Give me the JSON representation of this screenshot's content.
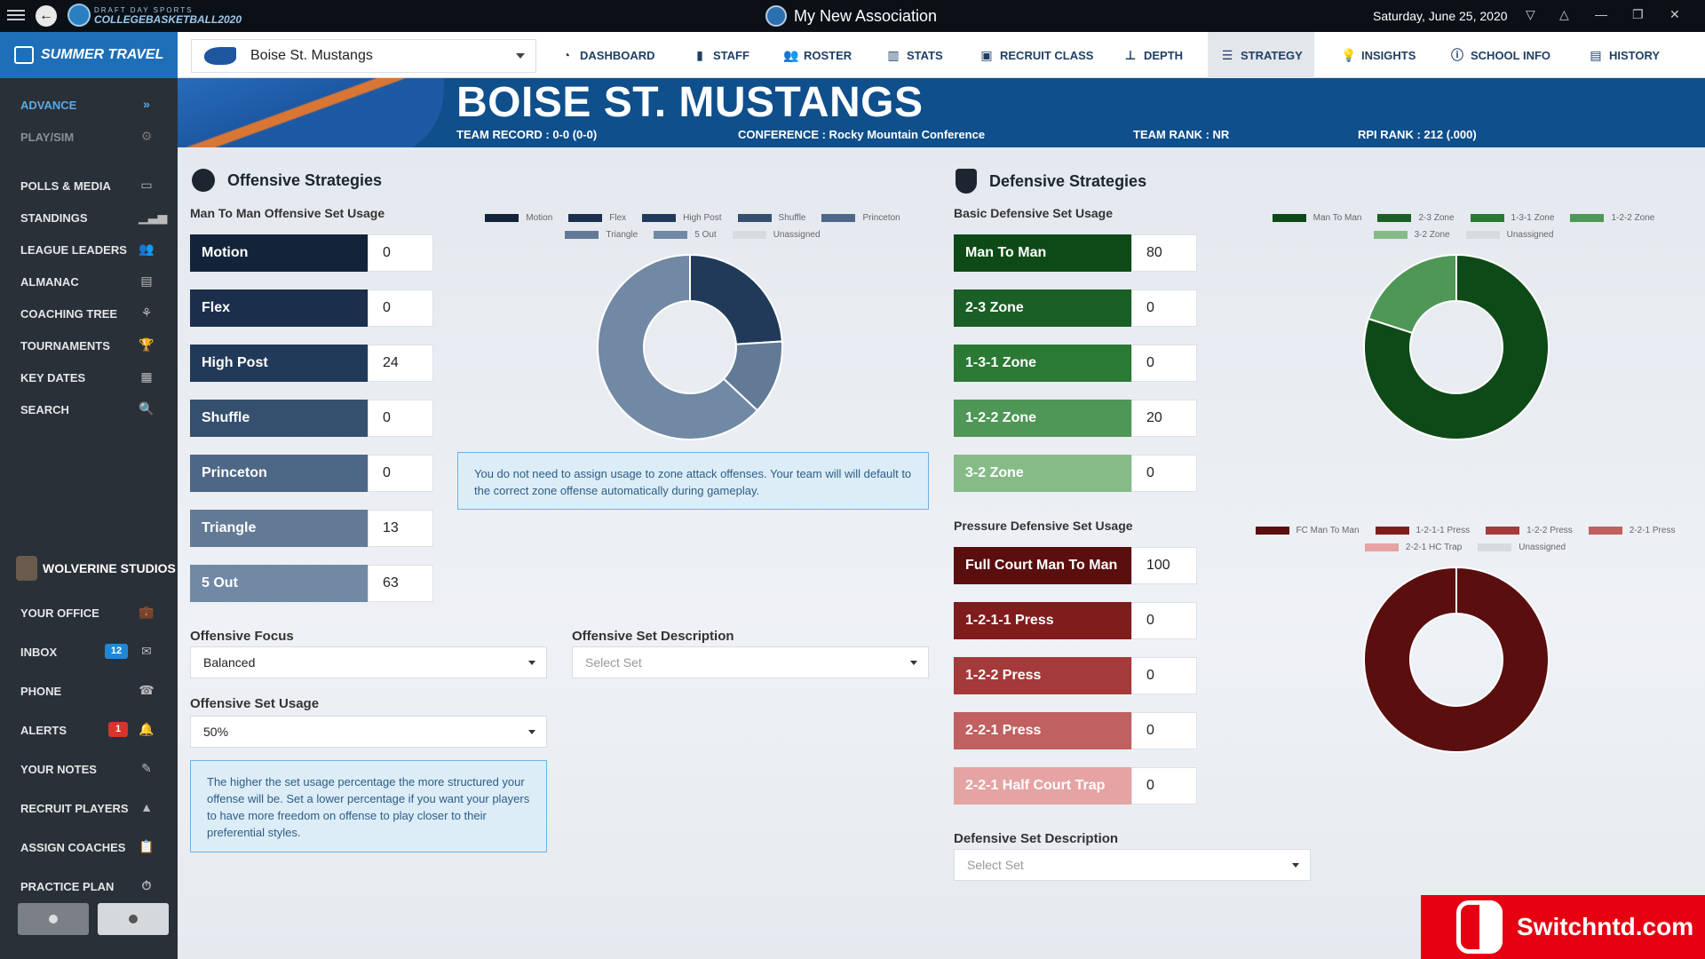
{
  "titlebar": {
    "logo_small": "DRAFT DAY SPORTS",
    "logo_big": "COLLEGEBASKETBALL2020",
    "title": "My New Association",
    "date": "Saturday, June 25, 2020",
    "controls": [
      "▽",
      "△",
      "—",
      "❐",
      "✕"
    ]
  },
  "sidebar": {
    "header": "SUMMER TRAVEL",
    "top_items": [
      {
        "label": "ADVANCE",
        "icon": "double-chevron-right-icon"
      },
      {
        "label": "PLAY/SIM",
        "icon": "gear-icon"
      }
    ],
    "items": [
      {
        "label": "POLLS & MEDIA",
        "icon": "media-icon"
      },
      {
        "label": "STANDINGS",
        "icon": "bar-chart-icon"
      },
      {
        "label": "LEAGUE LEADERS",
        "icon": "users-icon"
      },
      {
        "label": "ALMANAC",
        "icon": "archive-icon"
      },
      {
        "label": "COACHING TREE",
        "icon": "tree-icon"
      },
      {
        "label": "TOURNAMENTS",
        "icon": "trophy-icon"
      },
      {
        "label": "KEY DATES",
        "icon": "calendar-icon"
      },
      {
        "label": "SEARCH",
        "icon": "search-icon"
      }
    ],
    "studio": "WOLVERINE STUDIOS",
    "studio_items": [
      {
        "label": "YOUR OFFICE",
        "icon": "briefcase-icon"
      },
      {
        "label": "INBOX",
        "icon": "envelope-icon",
        "badge": "12"
      },
      {
        "label": "PHONE",
        "icon": "phone-icon"
      },
      {
        "label": "ALERTS",
        "icon": "bell-icon",
        "badge": "1"
      },
      {
        "label": "YOUR NOTES",
        "icon": "edit-icon"
      },
      {
        "label": "RECRUIT PLAYERS",
        "icon": "recruit-icon"
      },
      {
        "label": "ASSIGN COACHES",
        "icon": "clipboard-icon"
      },
      {
        "label": "PRACTICE PLAN",
        "icon": "stopwatch-icon"
      }
    ]
  },
  "topnav": {
    "team": "Boise St. Mustangs",
    "items": [
      {
        "label": "DASHBOARD",
        "icon": "dashboard-icon"
      },
      {
        "label": "STAFF",
        "icon": "staff-icon"
      },
      {
        "label": "ROSTER",
        "icon": "roster-icon"
      },
      {
        "label": "STATS",
        "icon": "stats-icon"
      },
      {
        "label": "RECRUIT CLASS",
        "icon": "recruit-class-icon"
      },
      {
        "label": "DEPTH",
        "icon": "depth-icon"
      },
      {
        "label": "STRATEGY",
        "icon": "strategy-icon",
        "active": true
      },
      {
        "label": "INSIGHTS",
        "icon": "insights-icon"
      },
      {
        "label": "SCHOOL INFO",
        "icon": "info-icon"
      },
      {
        "label": "HISTORY",
        "icon": "history-icon"
      }
    ]
  },
  "banner": {
    "title": "BOISE ST. MUSTANGS",
    "record": "TEAM RECORD : 0-0 (0-0)",
    "conference": "CONFERENCE : Rocky Mountain Conference",
    "rank": "TEAM RANK : NR",
    "rpi": "RPI RANK : 212 (.000)"
  },
  "offense": {
    "title": "Offensive Strategies",
    "subtitle": "Man To Man Offensive Set Usage",
    "sets": [
      {
        "label": "Motion",
        "value": "0",
        "color": "#13243a"
      },
      {
        "label": "Flex",
        "value": "0",
        "color": "#1b2f4d"
      },
      {
        "label": "High Post",
        "value": "24",
        "color": "#213a5a"
      },
      {
        "label": "Shuffle",
        "value": "0",
        "color": "#34506e"
      },
      {
        "label": "Princeton",
        "value": "0",
        "color": "#4d6786"
      },
      {
        "label": "Triangle",
        "value": "13",
        "color": "#627a95"
      },
      {
        "label": "5 Out",
        "value": "63",
        "color": "#7189a4"
      }
    ],
    "legend_unassigned": "Unassigned",
    "unassigned_color": "#d8dbde",
    "info": "You do not need to assign usage to zone attack offenses. Your team will will default to the correct zone offense automatically during gameplay.",
    "focus_label": "Offensive Focus",
    "focus_value": "Balanced",
    "desc_label": "Offensive Set Description",
    "desc_placeholder": "Select Set",
    "usage_label": "Offensive Set Usage",
    "usage_value": "50%",
    "usage_info": "The higher the set usage percentage the more structured your offense will be. Set a lower percentage if you want your players to have more freedom on offense to play closer to their preferential styles."
  },
  "defense": {
    "title": "Defensive Strategies",
    "basic_subtitle": "Basic Defensive Set Usage",
    "basic_sets": [
      {
        "label": "Man To Man",
        "value": "80",
        "color": "#0e4a17"
      },
      {
        "label": "2-3 Zone",
        "value": "0",
        "color": "#1a5f25"
      },
      {
        "label": "1-3-1 Zone",
        "value": "0",
        "color": "#2a7a36"
      },
      {
        "label": "1-2-2 Zone",
        "value": "20",
        "color": "#4e9756"
      },
      {
        "label": "3-2 Zone",
        "value": "0",
        "color": "#86bb88"
      }
    ],
    "pressure_subtitle": "Pressure Defensive Set Usage",
    "pressure_sets": [
      {
        "label": "Full Court Man To Man",
        "legend": "FC Man To Man",
        "value": "100",
        "color": "#5a0e0e"
      },
      {
        "label": "1-2-1-1 Press",
        "legend": "1-2-1-1 Press",
        "value": "0",
        "color": "#7f1d1d"
      },
      {
        "label": "1-2-2 Press",
        "legend": "1-2-2 Press",
        "value": "0",
        "color": "#a53a3a"
      },
      {
        "label": "2-2-1 Press",
        "legend": "2-2-1 Press",
        "value": "0",
        "color": "#c06060"
      },
      {
        "label": "2-2-1 Half Court Trap",
        "legend": "2-2-1 HC Trap",
        "value": "0",
        "color": "#e5a3a3"
      }
    ],
    "legend_unassigned": "Unassigned",
    "unassigned_color": "#d8dbde",
    "desc_label": "Defensive Set Description",
    "desc_placeholder": "Select Set"
  },
  "watermark": "Switchntd.com"
}
